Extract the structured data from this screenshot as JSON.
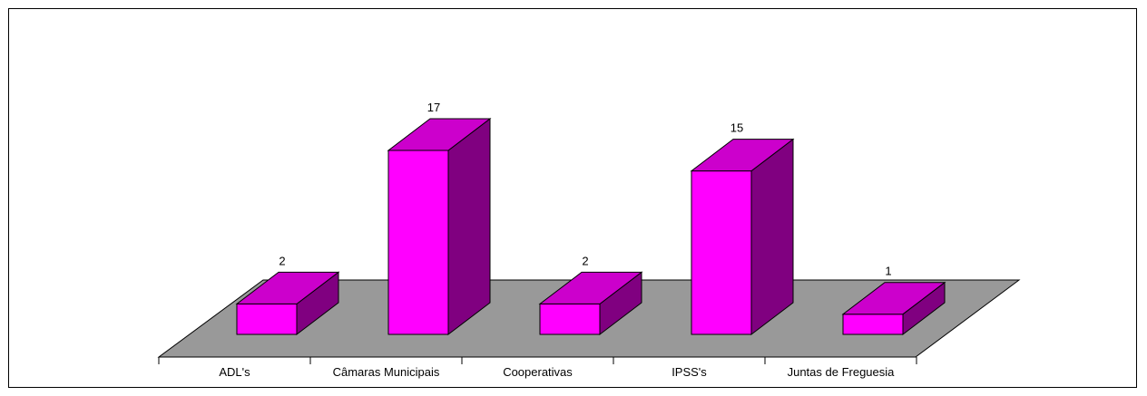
{
  "chart_data": {
    "type": "bar",
    "style": "3d-column",
    "categories": [
      "ADL's",
      "Câmaras Municipais",
      "Cooperativas",
      "IPSS's",
      "Juntas de Freguesia"
    ],
    "values": [
      2,
      17,
      2,
      15,
      1
    ],
    "title": "",
    "xlabel": "",
    "ylabel": "",
    "ylim": [
      0,
      17
    ],
    "grid": false,
    "legend": "none",
    "data_labels": true,
    "colors": {
      "bar_front": "#ff00ff",
      "bar_top": "#cc00cc",
      "bar_side": "#800080",
      "floor": "#999999",
      "frame": "#000000"
    }
  }
}
